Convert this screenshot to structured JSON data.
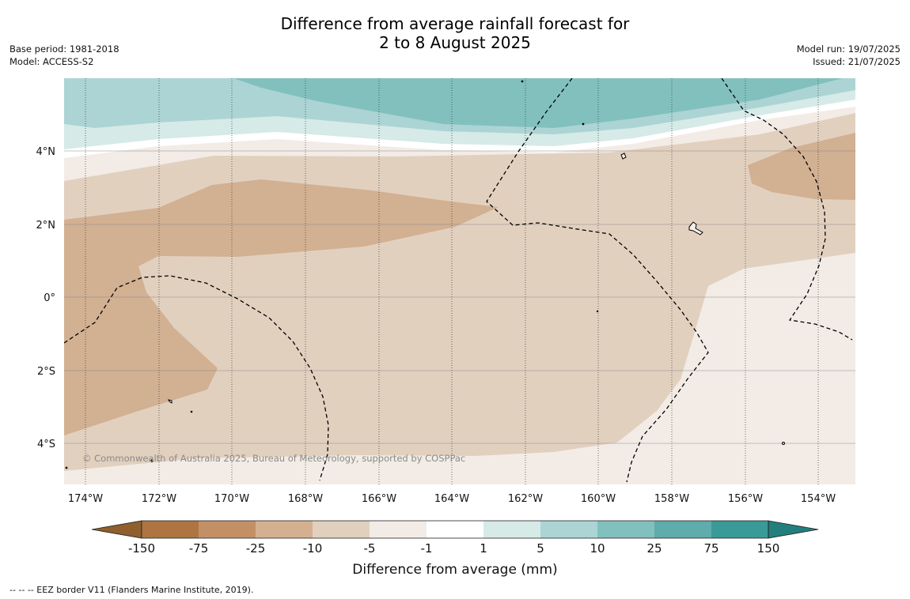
{
  "title": {
    "line1": "Difference from average rainfall forecast for",
    "line2": "2 to 8 August 2025"
  },
  "meta_left": {
    "base_period": "Base period: 1981-2018",
    "model": "Model: ACCESS-S2"
  },
  "meta_right": {
    "model_run": "Model run: 19/07/2025",
    "issued": "Issued: 21/07/2025"
  },
  "copyright": "© Commonwealth of Australia 2025, Bureau of Meteorology, supported by COSPPac",
  "footnote": "--  --  -- EEZ border V11 (Flanders Marine Institute, 2019).",
  "map": {
    "lon_labels": [
      "174°W",
      "172°W",
      "170°W",
      "168°W",
      "166°W",
      "164°W",
      "162°W",
      "160°W",
      "158°W",
      "156°W",
      "154°W"
    ],
    "lat_labels": [
      "4°N",
      "2°N",
      "0°",
      "2°S",
      "4°S"
    ]
  },
  "colorbar": {
    "title": "Difference from average (mm)",
    "tick_labels": [
      "-150",
      "-75",
      "-25",
      "-10",
      "-5",
      "-1",
      "1",
      "5",
      "10",
      "25",
      "75",
      "150"
    ],
    "colors": [
      "#8f5f2e",
      "#ae7542",
      "#c39066",
      "#d4b091",
      "#e2d0bf",
      "#f3ece6",
      "#ffffff",
      "#d6eae8",
      "#acd4d4",
      "#82c0be",
      "#5eacab",
      "#3a9a97",
      "#227f7d"
    ]
  }
}
